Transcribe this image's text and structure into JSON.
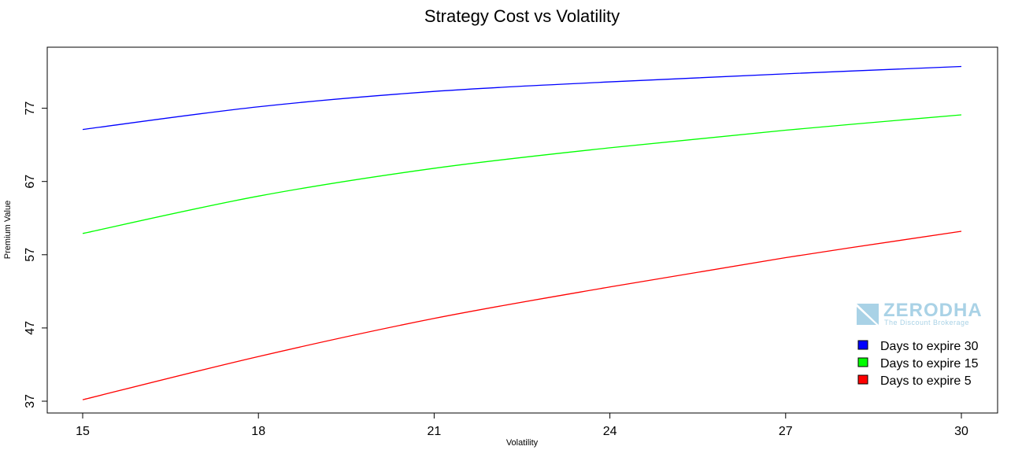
{
  "chart_data": {
    "type": "line",
    "title": "Strategy Cost vs Volatility",
    "xlabel": "Volatility",
    "ylabel": "Premium Value",
    "xlim": [
      15,
      30
    ],
    "ylim": [
      37,
      81
    ],
    "xticks": [
      "15",
      "18",
      "21",
      "24",
      "27",
      "30"
    ],
    "yticks": [
      "37",
      "47",
      "57",
      "67",
      "77"
    ],
    "x": [
      15,
      18,
      21,
      24,
      27,
      30
    ],
    "series": [
      {
        "name": "Days to expire 30",
        "color": "#0000ff",
        "values": [
          74.1,
          77.2,
          79.3,
          80.6,
          81.7,
          82.7
        ]
      },
      {
        "name": "Days to expire 15",
        "color": "#00ff00",
        "values": [
          59.9,
          65.0,
          68.8,
          71.6,
          74.0,
          76.1
        ]
      },
      {
        "name": "Days to expire 5",
        "color": "#ff0000",
        "values": [
          37.2,
          43.1,
          48.3,
          52.6,
          56.6,
          60.2
        ]
      }
    ],
    "legend_position": "bottom-right",
    "grid": false
  },
  "watermark": {
    "brand": "ZERODHA",
    "tagline": "The Discount Brokerage",
    "logo_icon": "zerodha-logo-icon"
  }
}
